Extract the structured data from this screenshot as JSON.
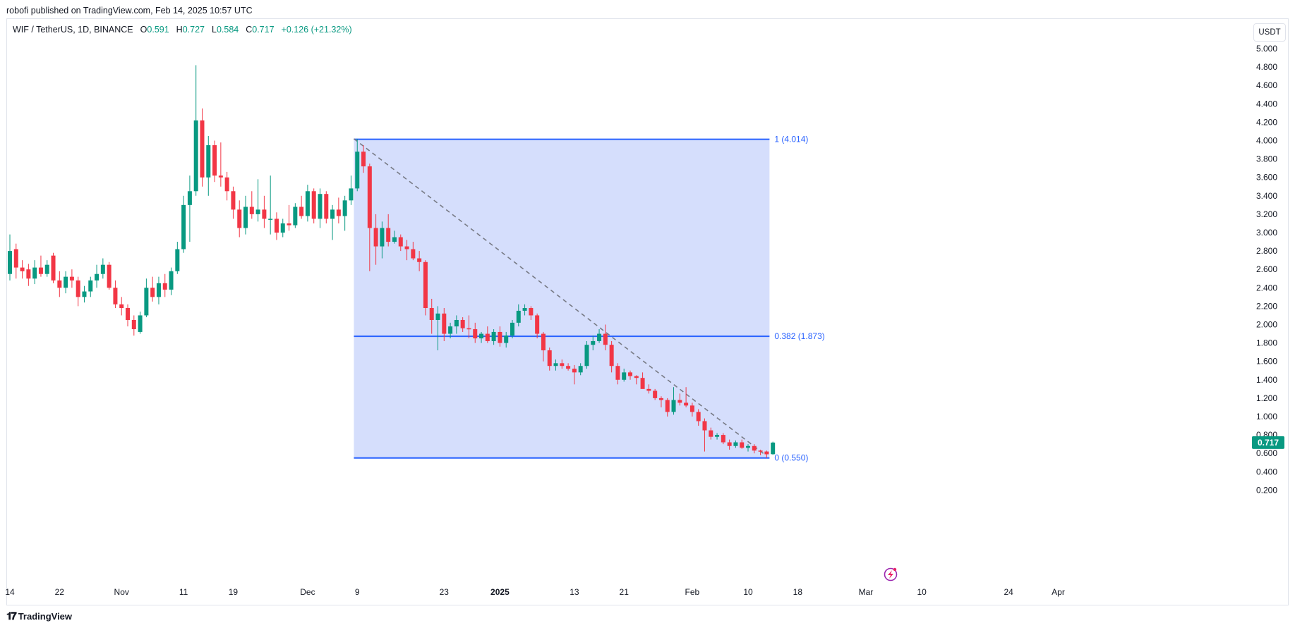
{
  "header": {
    "published": "robofi published on TradingView.com, Feb 14, 2025 10:57 UTC"
  },
  "legend": {
    "symbol": "WIF / TetherUS, 1D, BINANCE",
    "open_label": "O",
    "open": "0.591",
    "high_label": "H",
    "high": "0.727",
    "low_label": "L",
    "low": "0.584",
    "close_label": "C",
    "close": "0.717",
    "change": "+0.126 (+21.32%)"
  },
  "currency": "USDT",
  "last_price_badge": "0.717",
  "brand": {
    "name": "TradingView"
  },
  "colors": {
    "up": "#089981",
    "down": "#f23645",
    "fib": "#2962ff",
    "fib_fill": "#d5defc",
    "trendline": "#787b86",
    "badge": "#089981"
  },
  "chart_data": {
    "type": "candlestick",
    "ylim": [
      0.2,
      5.0
    ],
    "y_ticks": [
      "5.000",
      "4.800",
      "4.600",
      "4.400",
      "4.200",
      "4.000",
      "3.800",
      "3.600",
      "3.400",
      "3.200",
      "3.000",
      "2.800",
      "2.600",
      "2.400",
      "2.200",
      "2.000",
      "1.800",
      "1.600",
      "1.400",
      "1.200",
      "1.000",
      "0.800",
      "0.600",
      "0.400",
      "0.200"
    ],
    "x_ticks": [
      {
        "label": "14",
        "date": "2024-10-14"
      },
      {
        "label": "22",
        "date": "2024-10-22"
      },
      {
        "label": "Nov",
        "date": "2024-11-01"
      },
      {
        "label": "11",
        "date": "2024-11-11"
      },
      {
        "label": "19",
        "date": "2024-11-19"
      },
      {
        "label": "Dec",
        "date": "2024-12-01"
      },
      {
        "label": "9",
        "date": "2024-12-09"
      },
      {
        "label": "23",
        "date": "2024-12-23"
      },
      {
        "label": "2025",
        "date": "2025-01-01",
        "bold": true
      },
      {
        "label": "13",
        "date": "2025-01-13"
      },
      {
        "label": "21",
        "date": "2025-01-21"
      },
      {
        "label": "Feb",
        "date": "2025-02-01"
      },
      {
        "label": "10",
        "date": "2025-02-10"
      },
      {
        "label": "18",
        "date": "2025-02-18"
      },
      {
        "label": "Mar",
        "date": "2025-03-01"
      },
      {
        "label": "10",
        "date": "2025-03-10"
      },
      {
        "label": "24",
        "date": "2025-03-24"
      },
      {
        "label": "Apr",
        "date": "2025-04-01"
      }
    ],
    "fib_retracement": {
      "start_date": "2024-12-08",
      "end_date": "2025-02-13",
      "levels": [
        {
          "label": "1 (4.014)",
          "value": 4.014
        },
        {
          "label": "0.382 (1.873)",
          "value": 1.873
        },
        {
          "label": "0 (0.550)",
          "value": 0.55
        }
      ]
    },
    "trendline": [
      {
        "date": "2024-12-08",
        "value": 4.02
      },
      {
        "date": "2025-02-12",
        "value": 0.6
      }
    ],
    "candles": [
      {
        "date": "2024-10-14",
        "o": 2.55,
        "h": 2.98,
        "l": 2.48,
        "c": 2.8
      },
      {
        "date": "2024-10-15",
        "o": 2.82,
        "h": 2.88,
        "l": 2.5,
        "c": 2.62
      },
      {
        "date": "2024-10-16",
        "o": 2.62,
        "h": 2.7,
        "l": 2.5,
        "c": 2.58
      },
      {
        "date": "2024-10-17",
        "o": 2.6,
        "h": 2.66,
        "l": 2.42,
        "c": 2.5
      },
      {
        "date": "2024-10-18",
        "o": 2.5,
        "h": 2.7,
        "l": 2.44,
        "c": 2.62
      },
      {
        "date": "2024-10-19",
        "o": 2.62,
        "h": 2.75,
        "l": 2.52,
        "c": 2.55
      },
      {
        "date": "2024-10-20",
        "o": 2.55,
        "h": 2.7,
        "l": 2.52,
        "c": 2.65
      },
      {
        "date": "2024-10-21",
        "o": 2.75,
        "h": 2.78,
        "l": 2.45,
        "c": 2.48
      },
      {
        "date": "2024-10-22",
        "o": 2.48,
        "h": 2.58,
        "l": 2.3,
        "c": 2.4
      },
      {
        "date": "2024-10-23",
        "o": 2.4,
        "h": 2.58,
        "l": 2.34,
        "c": 2.52
      },
      {
        "date": "2024-10-24",
        "o": 2.52,
        "h": 2.6,
        "l": 2.4,
        "c": 2.48
      },
      {
        "date": "2024-10-25",
        "o": 2.48,
        "h": 2.52,
        "l": 2.2,
        "c": 2.3
      },
      {
        "date": "2024-10-26",
        "o": 2.3,
        "h": 2.42,
        "l": 2.24,
        "c": 2.36
      },
      {
        "date": "2024-10-27",
        "o": 2.36,
        "h": 2.52,
        "l": 2.3,
        "c": 2.48
      },
      {
        "date": "2024-10-28",
        "o": 2.48,
        "h": 2.65,
        "l": 2.4,
        "c": 2.55
      },
      {
        "date": "2024-10-29",
        "o": 2.55,
        "h": 2.72,
        "l": 2.5,
        "c": 2.65
      },
      {
        "date": "2024-10-30",
        "o": 2.65,
        "h": 2.68,
        "l": 2.38,
        "c": 2.4
      },
      {
        "date": "2024-10-31",
        "o": 2.4,
        "h": 2.48,
        "l": 2.18,
        "c": 2.22
      },
      {
        "date": "2024-11-01",
        "o": 2.22,
        "h": 2.3,
        "l": 2.1,
        "c": 2.18
      },
      {
        "date": "2024-11-02",
        "o": 2.18,
        "h": 2.22,
        "l": 1.98,
        "c": 2.05
      },
      {
        "date": "2024-11-03",
        "o": 2.05,
        "h": 2.1,
        "l": 1.88,
        "c": 1.95
      },
      {
        "date": "2024-11-04",
        "o": 1.92,
        "h": 2.14,
        "l": 1.9,
        "c": 2.1
      },
      {
        "date": "2024-11-05",
        "o": 2.1,
        "h": 2.5,
        "l": 2.08,
        "c": 2.4
      },
      {
        "date": "2024-11-06",
        "o": 2.4,
        "h": 2.52,
        "l": 2.25,
        "c": 2.3
      },
      {
        "date": "2024-11-07",
        "o": 2.3,
        "h": 2.52,
        "l": 2.22,
        "c": 2.45
      },
      {
        "date": "2024-11-08",
        "o": 2.45,
        "h": 2.55,
        "l": 2.3,
        "c": 2.38
      },
      {
        "date": "2024-11-09",
        "o": 2.38,
        "h": 2.62,
        "l": 2.32,
        "c": 2.58
      },
      {
        "date": "2024-11-10",
        "o": 2.58,
        "h": 2.9,
        "l": 2.55,
        "c": 2.82
      },
      {
        "date": "2024-11-11",
        "o": 2.82,
        "h": 3.4,
        "l": 2.78,
        "c": 3.3
      },
      {
        "date": "2024-11-12",
        "o": 3.3,
        "h": 3.62,
        "l": 2.9,
        "c": 3.45
      },
      {
        "date": "2024-11-13",
        "o": 3.45,
        "h": 4.82,
        "l": 3.4,
        "c": 4.22
      },
      {
        "date": "2024-11-14",
        "o": 4.22,
        "h": 4.35,
        "l": 3.5,
        "c": 3.6
      },
      {
        "date": "2024-11-15",
        "o": 3.6,
        "h": 4.05,
        "l": 3.4,
        "c": 3.95
      },
      {
        "date": "2024-11-16",
        "o": 3.95,
        "h": 4.0,
        "l": 3.55,
        "c": 3.62
      },
      {
        "date": "2024-11-17",
        "o": 3.62,
        "h": 3.98,
        "l": 3.5,
        "c": 3.6
      },
      {
        "date": "2024-11-18",
        "o": 3.6,
        "h": 3.66,
        "l": 3.35,
        "c": 3.45
      },
      {
        "date": "2024-11-19",
        "o": 3.45,
        "h": 3.5,
        "l": 3.15,
        "c": 3.25
      },
      {
        "date": "2024-11-20",
        "o": 3.25,
        "h": 3.35,
        "l": 2.95,
        "c": 3.05
      },
      {
        "date": "2024-11-21",
        "o": 3.05,
        "h": 3.4,
        "l": 2.98,
        "c": 3.28
      },
      {
        "date": "2024-11-22",
        "o": 3.28,
        "h": 3.45,
        "l": 3.15,
        "c": 3.2
      },
      {
        "date": "2024-11-23",
        "o": 3.2,
        "h": 3.58,
        "l": 3.12,
        "c": 3.25
      },
      {
        "date": "2024-11-24",
        "o": 3.25,
        "h": 3.4,
        "l": 3.05,
        "c": 3.15
      },
      {
        "date": "2024-11-25",
        "o": 3.15,
        "h": 3.62,
        "l": 2.98,
        "c": 3.15
      },
      {
        "date": "2024-11-26",
        "o": 3.15,
        "h": 3.22,
        "l": 2.92,
        "c": 3.0
      },
      {
        "date": "2024-11-27",
        "o": 3.0,
        "h": 3.15,
        "l": 2.95,
        "c": 3.1
      },
      {
        "date": "2024-11-28",
        "o": 3.1,
        "h": 3.3,
        "l": 3.02,
        "c": 3.08
      },
      {
        "date": "2024-11-29",
        "o": 3.08,
        "h": 3.32,
        "l": 3.05,
        "c": 3.28
      },
      {
        "date": "2024-11-30",
        "o": 3.28,
        "h": 3.4,
        "l": 3.15,
        "c": 3.18
      },
      {
        "date": "2024-12-01",
        "o": 3.18,
        "h": 3.52,
        "l": 3.12,
        "c": 3.45
      },
      {
        "date": "2024-12-02",
        "o": 3.45,
        "h": 3.48,
        "l": 3.1,
        "c": 3.15
      },
      {
        "date": "2024-12-03",
        "o": 3.15,
        "h": 3.48,
        "l": 3.05,
        "c": 3.42
      },
      {
        "date": "2024-12-04",
        "o": 3.42,
        "h": 3.45,
        "l": 3.1,
        "c": 3.15
      },
      {
        "date": "2024-12-05",
        "o": 3.15,
        "h": 3.3,
        "l": 2.92,
        "c": 3.25
      },
      {
        "date": "2024-12-06",
        "o": 3.25,
        "h": 3.38,
        "l": 3.1,
        "c": 3.18
      },
      {
        "date": "2024-12-07",
        "o": 3.18,
        "h": 3.4,
        "l": 3.02,
        "c": 3.35
      },
      {
        "date": "2024-12-08",
        "o": 3.35,
        "h": 3.62,
        "l": 3.3,
        "c": 3.48
      },
      {
        "date": "2024-12-09",
        "o": 3.48,
        "h": 4.02,
        "l": 3.45,
        "c": 3.88
      },
      {
        "date": "2024-12-10",
        "o": 3.88,
        "h": 3.95,
        "l": 3.65,
        "c": 3.72
      },
      {
        "date": "2024-12-11",
        "o": 3.72,
        "h": 3.75,
        "l": 2.58,
        "c": 3.05
      },
      {
        "date": "2024-12-12",
        "o": 3.05,
        "h": 3.2,
        "l": 2.65,
        "c": 2.85
      },
      {
        "date": "2024-12-13",
        "o": 2.85,
        "h": 3.12,
        "l": 2.72,
        "c": 3.05
      },
      {
        "date": "2024-12-14",
        "o": 3.05,
        "h": 3.2,
        "l": 2.85,
        "c": 2.9
      },
      {
        "date": "2024-12-15",
        "o": 2.9,
        "h": 3.02,
        "l": 2.88,
        "c": 2.95
      },
      {
        "date": "2024-12-16",
        "o": 2.95,
        "h": 2.98,
        "l": 2.8,
        "c": 2.85
      },
      {
        "date": "2024-12-17",
        "o": 2.85,
        "h": 2.92,
        "l": 2.7,
        "c": 2.82
      },
      {
        "date": "2024-12-18",
        "o": 2.82,
        "h": 2.9,
        "l": 2.7,
        "c": 2.72
      },
      {
        "date": "2024-12-19",
        "o": 2.72,
        "h": 2.8,
        "l": 2.58,
        "c": 2.68
      },
      {
        "date": "2024-12-20",
        "o": 2.68,
        "h": 2.7,
        "l": 2.1,
        "c": 2.18
      },
      {
        "date": "2024-12-21",
        "o": 2.18,
        "h": 2.28,
        "l": 1.9,
        "c": 2.05
      },
      {
        "date": "2024-12-22",
        "o": 2.05,
        "h": 2.2,
        "l": 1.72,
        "c": 2.12
      },
      {
        "date": "2024-12-23",
        "o": 2.12,
        "h": 2.18,
        "l": 1.82,
        "c": 1.9
      },
      {
        "date": "2024-12-24",
        "o": 1.9,
        "h": 2.02,
        "l": 1.85,
        "c": 1.98
      },
      {
        "date": "2024-12-25",
        "o": 1.98,
        "h": 2.1,
        "l": 1.9,
        "c": 2.05
      },
      {
        "date": "2024-12-26",
        "o": 2.05,
        "h": 2.08,
        "l": 1.92,
        "c": 1.96
      },
      {
        "date": "2024-12-27",
        "o": 1.96,
        "h": 2.1,
        "l": 1.85,
        "c": 1.95
      },
      {
        "date": "2024-12-28",
        "o": 1.95,
        "h": 2.02,
        "l": 1.8,
        "c": 1.85
      },
      {
        "date": "2024-12-29",
        "o": 1.85,
        "h": 1.92,
        "l": 1.8,
        "c": 1.9
      },
      {
        "date": "2024-12-30",
        "o": 1.9,
        "h": 1.98,
        "l": 1.8,
        "c": 1.82
      },
      {
        "date": "2024-12-31",
        "o": 1.82,
        "h": 1.95,
        "l": 1.78,
        "c": 1.92
      },
      {
        "date": "2025-01-01",
        "o": 1.92,
        "h": 1.98,
        "l": 1.76,
        "c": 1.8
      },
      {
        "date": "2025-01-02",
        "o": 1.8,
        "h": 1.92,
        "l": 1.75,
        "c": 1.88
      },
      {
        "date": "2025-01-03",
        "o": 1.88,
        "h": 2.05,
        "l": 1.85,
        "c": 2.02
      },
      {
        "date": "2025-01-04",
        "o": 2.02,
        "h": 2.22,
        "l": 1.98,
        "c": 2.15
      },
      {
        "date": "2025-01-05",
        "o": 2.15,
        "h": 2.22,
        "l": 2.1,
        "c": 2.18
      },
      {
        "date": "2025-01-06",
        "o": 2.18,
        "h": 2.2,
        "l": 2.05,
        "c": 2.1
      },
      {
        "date": "2025-01-07",
        "o": 2.1,
        "h": 2.12,
        "l": 1.85,
        "c": 1.9
      },
      {
        "date": "2025-01-08",
        "o": 1.9,
        "h": 1.92,
        "l": 1.6,
        "c": 1.72
      },
      {
        "date": "2025-01-09",
        "o": 1.72,
        "h": 1.75,
        "l": 1.5,
        "c": 1.55
      },
      {
        "date": "2025-01-10",
        "o": 1.55,
        "h": 1.62,
        "l": 1.5,
        "c": 1.58
      },
      {
        "date": "2025-01-11",
        "o": 1.58,
        "h": 1.62,
        "l": 1.52,
        "c": 1.55
      },
      {
        "date": "2025-01-12",
        "o": 1.55,
        "h": 1.58,
        "l": 1.5,
        "c": 1.52
      },
      {
        "date": "2025-01-13",
        "o": 1.52,
        "h": 1.56,
        "l": 1.35,
        "c": 1.48
      },
      {
        "date": "2025-01-14",
        "o": 1.48,
        "h": 1.58,
        "l": 1.45,
        "c": 1.55
      },
      {
        "date": "2025-01-15",
        "o": 1.55,
        "h": 1.82,
        "l": 1.52,
        "c": 1.78
      },
      {
        "date": "2025-01-16",
        "o": 1.78,
        "h": 1.88,
        "l": 1.72,
        "c": 1.82
      },
      {
        "date": "2025-01-17",
        "o": 1.82,
        "h": 1.95,
        "l": 1.8,
        "c": 1.9
      },
      {
        "date": "2025-01-18",
        "o": 1.9,
        "h": 2.0,
        "l": 1.72,
        "c": 1.78
      },
      {
        "date": "2025-01-19",
        "o": 1.78,
        "h": 1.82,
        "l": 1.48,
        "c": 1.55
      },
      {
        "date": "2025-01-20",
        "o": 1.55,
        "h": 1.58,
        "l": 1.35,
        "c": 1.4
      },
      {
        "date": "2025-01-21",
        "o": 1.4,
        "h": 1.52,
        "l": 1.38,
        "c": 1.48
      },
      {
        "date": "2025-01-22",
        "o": 1.48,
        "h": 1.5,
        "l": 1.4,
        "c": 1.44
      },
      {
        "date": "2025-01-23",
        "o": 1.44,
        "h": 1.45,
        "l": 1.35,
        "c": 1.42
      },
      {
        "date": "2025-01-24",
        "o": 1.42,
        "h": 1.48,
        "l": 1.32,
        "c": 1.3
      },
      {
        "date": "2025-01-25",
        "o": 1.3,
        "h": 1.35,
        "l": 1.25,
        "c": 1.28
      },
      {
        "date": "2025-01-26",
        "o": 1.28,
        "h": 1.3,
        "l": 1.18,
        "c": 1.2
      },
      {
        "date": "2025-01-27",
        "o": 1.2,
        "h": 1.22,
        "l": 1.1,
        "c": 1.18
      },
      {
        "date": "2025-01-28",
        "o": 1.18,
        "h": 1.2,
        "l": 1.0,
        "c": 1.05
      },
      {
        "date": "2025-01-29",
        "o": 1.05,
        "h": 1.32,
        "l": 1.02,
        "c": 1.18
      },
      {
        "date": "2025-01-30",
        "o": 1.18,
        "h": 1.25,
        "l": 1.12,
        "c": 1.15
      },
      {
        "date": "2025-01-31",
        "o": 1.15,
        "h": 1.32,
        "l": 1.1,
        "c": 1.12
      },
      {
        "date": "2025-02-01",
        "o": 1.12,
        "h": 1.15,
        "l": 1.0,
        "c": 1.05
      },
      {
        "date": "2025-02-02",
        "o": 1.05,
        "h": 1.08,
        "l": 0.9,
        "c": 0.95
      },
      {
        "date": "2025-02-03",
        "o": 0.95,
        "h": 0.98,
        "l": 0.62,
        "c": 0.85
      },
      {
        "date": "2025-02-04",
        "o": 0.85,
        "h": 0.88,
        "l": 0.75,
        "c": 0.78
      },
      {
        "date": "2025-02-05",
        "o": 0.78,
        "h": 0.82,
        "l": 0.75,
        "c": 0.8
      },
      {
        "date": "2025-02-06",
        "o": 0.8,
        "h": 0.82,
        "l": 0.7,
        "c": 0.72
      },
      {
        "date": "2025-02-07",
        "o": 0.72,
        "h": 0.75,
        "l": 0.64,
        "c": 0.68
      },
      {
        "date": "2025-02-08",
        "o": 0.68,
        "h": 0.74,
        "l": 0.66,
        "c": 0.72
      },
      {
        "date": "2025-02-09",
        "o": 0.72,
        "h": 0.75,
        "l": 0.65,
        "c": 0.66
      },
      {
        "date": "2025-02-10",
        "o": 0.66,
        "h": 0.7,
        "l": 0.62,
        "c": 0.68
      },
      {
        "date": "2025-02-11",
        "o": 0.68,
        "h": 0.7,
        "l": 0.6,
        "c": 0.63
      },
      {
        "date": "2025-02-12",
        "o": 0.63,
        "h": 0.64,
        "l": 0.58,
        "c": 0.62
      },
      {
        "date": "2025-02-13",
        "o": 0.62,
        "h": 0.63,
        "l": 0.55,
        "c": 0.59
      },
      {
        "date": "2025-02-14",
        "o": 0.591,
        "h": 0.727,
        "l": 0.584,
        "c": 0.717
      }
    ]
  }
}
